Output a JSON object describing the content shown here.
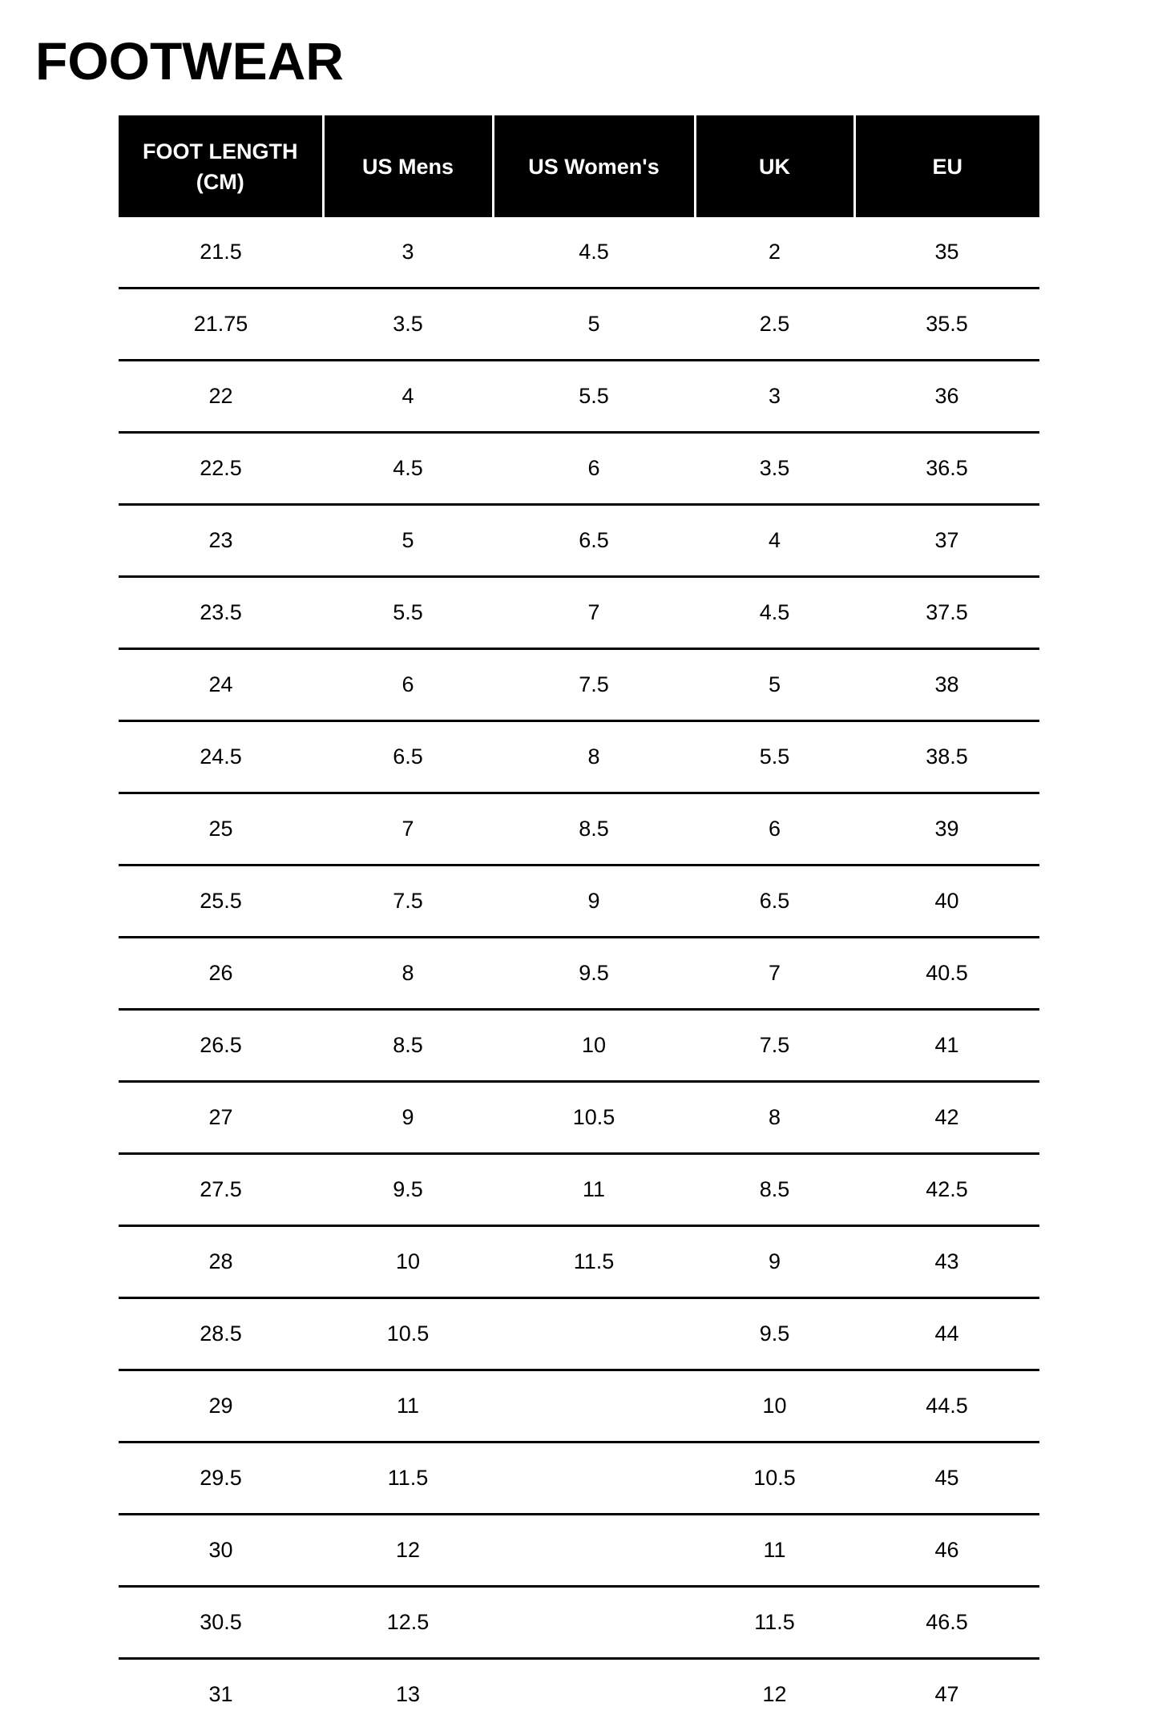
{
  "title": "FOOTWEAR",
  "columns": [
    "FOOT LENGTH (CM)",
    "US Mens",
    "US Women's",
    "UK",
    "EU"
  ],
  "rows": [
    [
      "21.5",
      "3",
      "4.5",
      "2",
      "35"
    ],
    [
      "21.75",
      "3.5",
      "5",
      "2.5",
      "35.5"
    ],
    [
      "22",
      "4",
      "5.5",
      "3",
      "36"
    ],
    [
      "22.5",
      "4.5",
      "6",
      "3.5",
      "36.5"
    ],
    [
      "23",
      "5",
      "6.5",
      "4",
      "37"
    ],
    [
      "23.5",
      "5.5",
      "7",
      "4.5",
      "37.5"
    ],
    [
      "24",
      "6",
      "7.5",
      "5",
      "38"
    ],
    [
      "24.5",
      "6.5",
      "8",
      "5.5",
      "38.5"
    ],
    [
      "25",
      "7",
      "8.5",
      "6",
      "39"
    ],
    [
      "25.5",
      "7.5",
      "9",
      "6.5",
      "40"
    ],
    [
      "26",
      "8",
      "9.5",
      "7",
      "40.5"
    ],
    [
      "26.5",
      "8.5",
      "10",
      "7.5",
      "41"
    ],
    [
      "27",
      "9",
      "10.5",
      "8",
      "42"
    ],
    [
      "27.5",
      "9.5",
      "11",
      "8.5",
      "42.5"
    ],
    [
      "28",
      "10",
      "11.5",
      "9",
      "43"
    ],
    [
      "28.5",
      "10.5",
      "",
      "9.5",
      "44"
    ],
    [
      "29",
      "11",
      "",
      "10",
      "44.5"
    ],
    [
      "29.5",
      "11.5",
      "",
      "10.5",
      "45"
    ],
    [
      "30",
      "12",
      "",
      "11",
      "46"
    ],
    [
      "30.5",
      "12.5",
      "",
      "11.5",
      "46.5"
    ],
    [
      "31",
      "13",
      "",
      "12",
      "47"
    ]
  ]
}
